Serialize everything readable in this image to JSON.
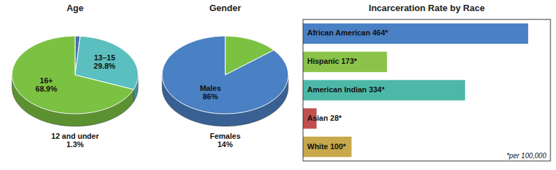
{
  "chart_data": [
    {
      "type": "pie",
      "title": "Age",
      "categories": [
        "12 and under",
        "13–15",
        "16+"
      ],
      "values": [
        1.3,
        29.8,
        68.9
      ],
      "value_labels": [
        "1.3%",
        "29.8%",
        "68.9%"
      ],
      "colors": [
        "#4a6faa",
        "#5bbfbf",
        "#7bc142"
      ],
      "data_labels": true
    },
    {
      "type": "pie",
      "title": "Gender",
      "categories": [
        "Females",
        "Males"
      ],
      "values": [
        14,
        86
      ],
      "value_labels": [
        "14%",
        "86%"
      ],
      "colors": [
        "#7bc142",
        "#4a80c4"
      ],
      "data_labels": true
    },
    {
      "type": "bar",
      "orientation": "horizontal",
      "title": "Incarceration Rate by Race",
      "categories": [
        "African American 464*",
        "Hispanic 173*",
        "American Indian 334*",
        "Asian 28*",
        "White 100*"
      ],
      "values": [
        464,
        173,
        334,
        28,
        100
      ],
      "colors": [
        "#4a80c4",
        "#8bc34a",
        "#4db8a8",
        "#c0504d",
        "#c8a84b"
      ],
      "xlim": [
        0,
        510
      ],
      "tick_labels": false,
      "annotations": [
        "*per 100,000"
      ]
    }
  ]
}
